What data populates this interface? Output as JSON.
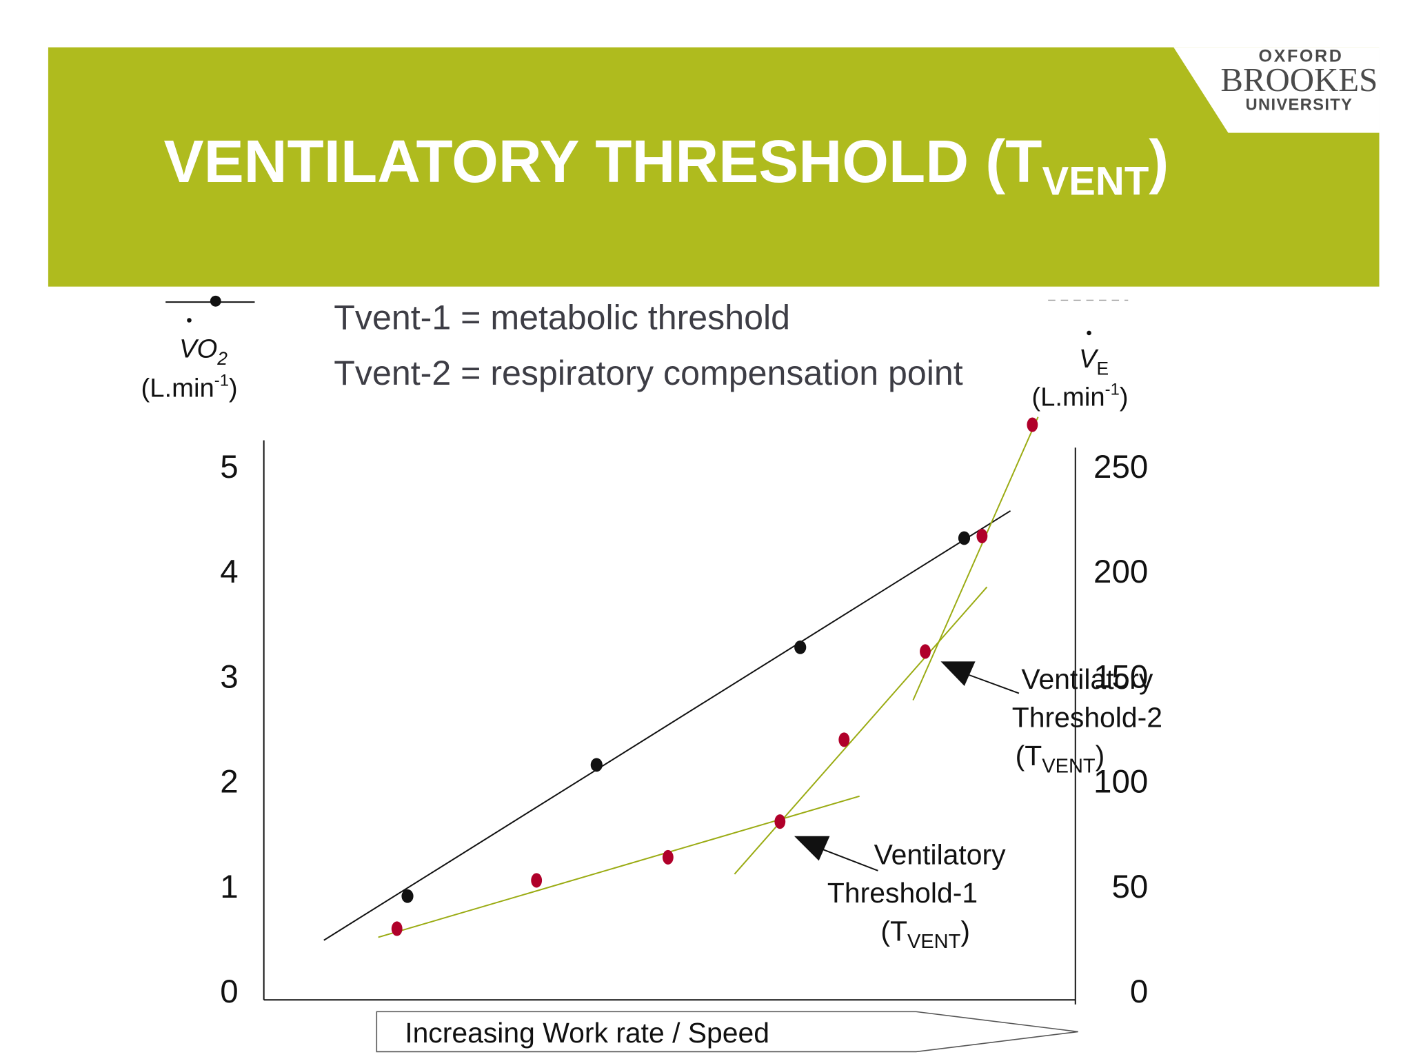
{
  "header": {
    "title": [
      "VENTILATORY THRESHOLD (T",
      "VENT",
      ")"
    ],
    "logo": [
      "OXFORD",
      "BROOKES",
      "UNIVERSITY"
    ]
  },
  "notes": [
    "Tvent-1 = metabolic threshold",
    "Tvent-2 = respiratory compensation point"
  ],
  "chart_data": {
    "type": "scatter",
    "x_label": "Increasing Work rate / Speed",
    "y_label": [
      "VO",
      "2",
      "(L.min",
      "-1",
      ")"
    ],
    "y2_label": [
      "V",
      "E",
      "(L.min",
      "-1",
      ")"
    ],
    "xlim": [
      0,
      100
    ],
    "ylim": [
      0,
      5
    ],
    "yticks": [
      0,
      1,
      2,
      3,
      4,
      5
    ],
    "y2lim": [
      0,
      250
    ],
    "y2ticks": [
      0,
      50,
      100,
      150,
      200,
      250
    ],
    "series": [
      {
        "color": "#111111",
        "axis": "y",
        "x": [
          17.7,
          41.0,
          66.1,
          86.3
        ],
        "values": [
          0.91,
          2.16,
          3.28,
          4.32
        ]
      },
      {
        "color": "#b0002a",
        "axis": "y2",
        "x": [
          16.4,
          33.6,
          49.8,
          63.6,
          71.5,
          81.5,
          88.5,
          94.7
        ],
        "values": [
          30,
          53,
          64,
          81,
          120,
          162,
          217,
          270
        ]
      }
    ],
    "trend_lines": [
      {
        "color": "#111111",
        "axis": "y",
        "x": [
          7.4,
          92.0
        ],
        "values": [
          0.49,
          4.58
        ]
      },
      {
        "color": "#9aab12",
        "axis": "y2",
        "x": [
          14.1,
          73.4
        ],
        "values": [
          25.9,
          93.1
        ]
      },
      {
        "color": "#9aab12",
        "axis": "y2",
        "x": [
          58.0,
          89.1
        ],
        "values": [
          56.0,
          192.7
        ]
      },
      {
        "color": "#9aab12",
        "axis": "y2",
        "x": [
          80.0,
          95.4
        ],
        "values": [
          138.8,
          273.7
        ]
      }
    ],
    "annotations": [
      [
        "Ventilatory",
        "Threshold-1",
        "(T",
        "VENT",
        ")"
      ],
      [
        "Ventilatory",
        "Threshold-2",
        "(T",
        "VENT",
        ")"
      ]
    ]
  }
}
